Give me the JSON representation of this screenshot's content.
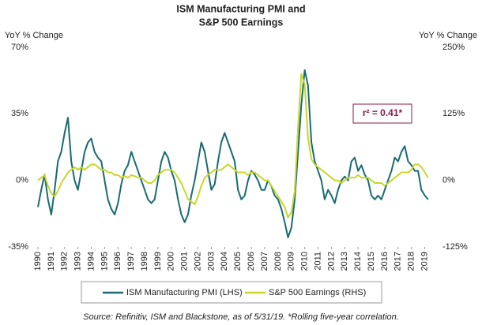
{
  "chart_data": {
    "type": "line",
    "title_lines": [
      "ISM Manufacturing  PMI and",
      "S&P 500 Earnings"
    ],
    "y_label": "YoY % Change",
    "y2_label": "YoY % Change",
    "annotation": "r² = 0.41*",
    "source": "Source: Refinitiv, ISM and Blackstone, as of 5/31/19. *Rolling five-year correlation.",
    "grid": false,
    "xlim": [
      1990,
      2019.5
    ],
    "xticks": [
      1990,
      1991,
      1992,
      1993,
      1994,
      1995,
      1996,
      1997,
      1998,
      1999,
      2000,
      2001,
      2002,
      2003,
      2004,
      2005,
      2006,
      2007,
      2008,
      2009,
      2010,
      2011,
      2012,
      2013,
      2014,
      2015,
      2016,
      2017,
      2018,
      2019
    ],
    "ylim": [
      -35,
      70
    ],
    "yticks": [
      {
        "value": -35,
        "label": "-35%"
      },
      {
        "value": 0,
        "label": "0%"
      },
      {
        "value": 35,
        "label": "35%"
      },
      {
        "value": 70,
        "label": "70%"
      }
    ],
    "y2lim": [
      -125,
      250
    ],
    "y2ticks": [
      {
        "value": -125,
        "label": "-125%"
      },
      {
        "value": 0,
        "label": "0%"
      },
      {
        "value": 125,
        "label": "125%"
      },
      {
        "value": 250,
        "label": "250%"
      }
    ],
    "x": [
      1990,
      1990.25,
      1990.5,
      1990.75,
      1991,
      1991.25,
      1991.5,
      1991.75,
      1992,
      1992.25,
      1992.5,
      1992.75,
      1993,
      1993.25,
      1993.5,
      1993.75,
      1994,
      1994.25,
      1994.5,
      1994.75,
      1995,
      1995.25,
      1995.5,
      1995.75,
      1996,
      1996.25,
      1996.5,
      1996.75,
      1997,
      1997.25,
      1997.5,
      1997.75,
      1998,
      1998.25,
      1998.5,
      1998.75,
      1999,
      1999.25,
      1999.5,
      1999.75,
      2000,
      2000.25,
      2000.5,
      2000.75,
      2001,
      2001.25,
      2001.5,
      2001.75,
      2002,
      2002.25,
      2002.5,
      2002.75,
      2003,
      2003.25,
      2003.5,
      2003.75,
      2004,
      2004.25,
      2004.5,
      2004.75,
      2005,
      2005.25,
      2005.5,
      2005.75,
      2006,
      2006.25,
      2006.5,
      2006.75,
      2007,
      2007.25,
      2007.5,
      2007.75,
      2008,
      2008.25,
      2008.5,
      2008.75,
      2009,
      2009.25,
      2009.5,
      2009.75,
      2010,
      2010.25,
      2010.5,
      2010.75,
      2011,
      2011.25,
      2011.5,
      2011.75,
      2012,
      2012.25,
      2012.5,
      2012.75,
      2013,
      2013.25,
      2013.5,
      2013.75,
      2014,
      2014.25,
      2014.5,
      2014.75,
      2015,
      2015.25,
      2015.5,
      2015.75,
      2016,
      2016.25,
      2016.5,
      2016.75,
      2017,
      2017.25,
      2017.5,
      2017.75,
      2018,
      2018.25,
      2018.5,
      2018.75,
      2019,
      2019.25
    ],
    "series": [
      {
        "name": "ISM Manufacturing PMI (LHS)",
        "color": "#1a6b70",
        "values": [
          -14,
          -5,
          3,
          -10,
          -18,
          -5,
          10,
          15,
          25,
          33,
          10,
          0,
          -5,
          5,
          15,
          20,
          22,
          15,
          12,
          10,
          0,
          -10,
          -15,
          -18,
          -12,
          -2,
          5,
          8,
          15,
          10,
          5,
          0,
          -5,
          -10,
          -12,
          -10,
          0,
          10,
          15,
          12,
          5,
          0,
          -10,
          -18,
          -22,
          -18,
          -8,
          0,
          10,
          20,
          15,
          5,
          -5,
          -2,
          10,
          20,
          25,
          20,
          15,
          10,
          -5,
          -10,
          -8,
          0,
          5,
          3,
          0,
          -5,
          -5,
          0,
          -3,
          -8,
          -10,
          -15,
          -22,
          -30,
          -25,
          -10,
          15,
          40,
          58,
          50,
          20,
          10,
          5,
          0,
          -10,
          -5,
          -8,
          -12,
          -5,
          0,
          2,
          0,
          10,
          12,
          5,
          8,
          3,
          0,
          -8,
          -10,
          -8,
          -10,
          -5,
          0,
          5,
          12,
          10,
          15,
          18,
          10,
          8,
          5,
          5,
          -5,
          -8,
          -10
        ]
      },
      {
        "name": "S&P 500 Earnings (RHS)",
        "color": "#c8d72a",
        "axis": "y2",
        "values": [
          0,
          5,
          10,
          -10,
          -25,
          -30,
          -20,
          -5,
          5,
          15,
          20,
          25,
          20,
          25,
          20,
          25,
          30,
          30,
          25,
          20,
          20,
          15,
          15,
          10,
          10,
          5,
          8,
          5,
          10,
          8,
          5,
          5,
          0,
          -5,
          -5,
          0,
          10,
          15,
          20,
          20,
          20,
          15,
          5,
          -5,
          -20,
          -35,
          -40,
          -45,
          -30,
          -10,
          5,
          10,
          15,
          20,
          20,
          20,
          25,
          30,
          25,
          20,
          15,
          15,
          15,
          10,
          15,
          15,
          10,
          5,
          0,
          0,
          -10,
          -20,
          -30,
          -40,
          -50,
          -70,
          -60,
          -20,
          100,
          200,
          180,
          80,
          40,
          30,
          25,
          20,
          15,
          10,
          5,
          0,
          0,
          -5,
          0,
          5,
          5,
          5,
          10,
          5,
          5,
          5,
          0,
          -5,
          -5,
          -5,
          -10,
          -5,
          0,
          5,
          10,
          15,
          15,
          15,
          20,
          30,
          30,
          25,
          15,
          5
        ]
      }
    ]
  }
}
